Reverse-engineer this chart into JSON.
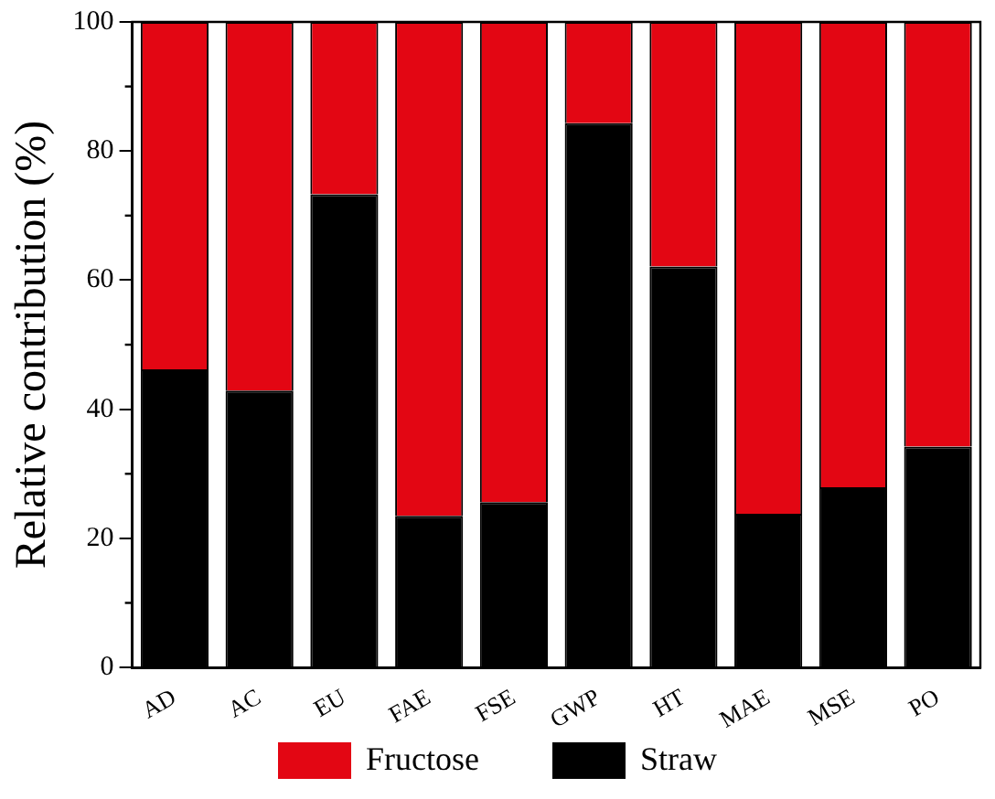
{
  "chart_data": {
    "type": "bar",
    "stacked": true,
    "ylabel": "Relative contribution (%)",
    "categories": [
      "AD",
      "AC",
      "EU",
      "FAE",
      "FSE",
      "GWP",
      "HT",
      "MAE",
      "MSE",
      "PO"
    ],
    "series": [
      {
        "name": "Straw",
        "color": "#000000",
        "values": [
          46.2,
          42.9,
          73.3,
          23.5,
          25.6,
          84.3,
          62.1,
          23.8,
          27.9,
          34.2
        ]
      },
      {
        "name": "Fructose",
        "color": "#e30613",
        "values": [
          53.8,
          57.1,
          26.7,
          76.5,
          74.4,
          15.7,
          37.9,
          76.2,
          72.1,
          65.8
        ]
      }
    ],
    "ylim": [
      0,
      100
    ],
    "yticks": [
      0,
      20,
      40,
      60,
      80,
      100
    ],
    "grid": false,
    "legend": "bottom"
  }
}
